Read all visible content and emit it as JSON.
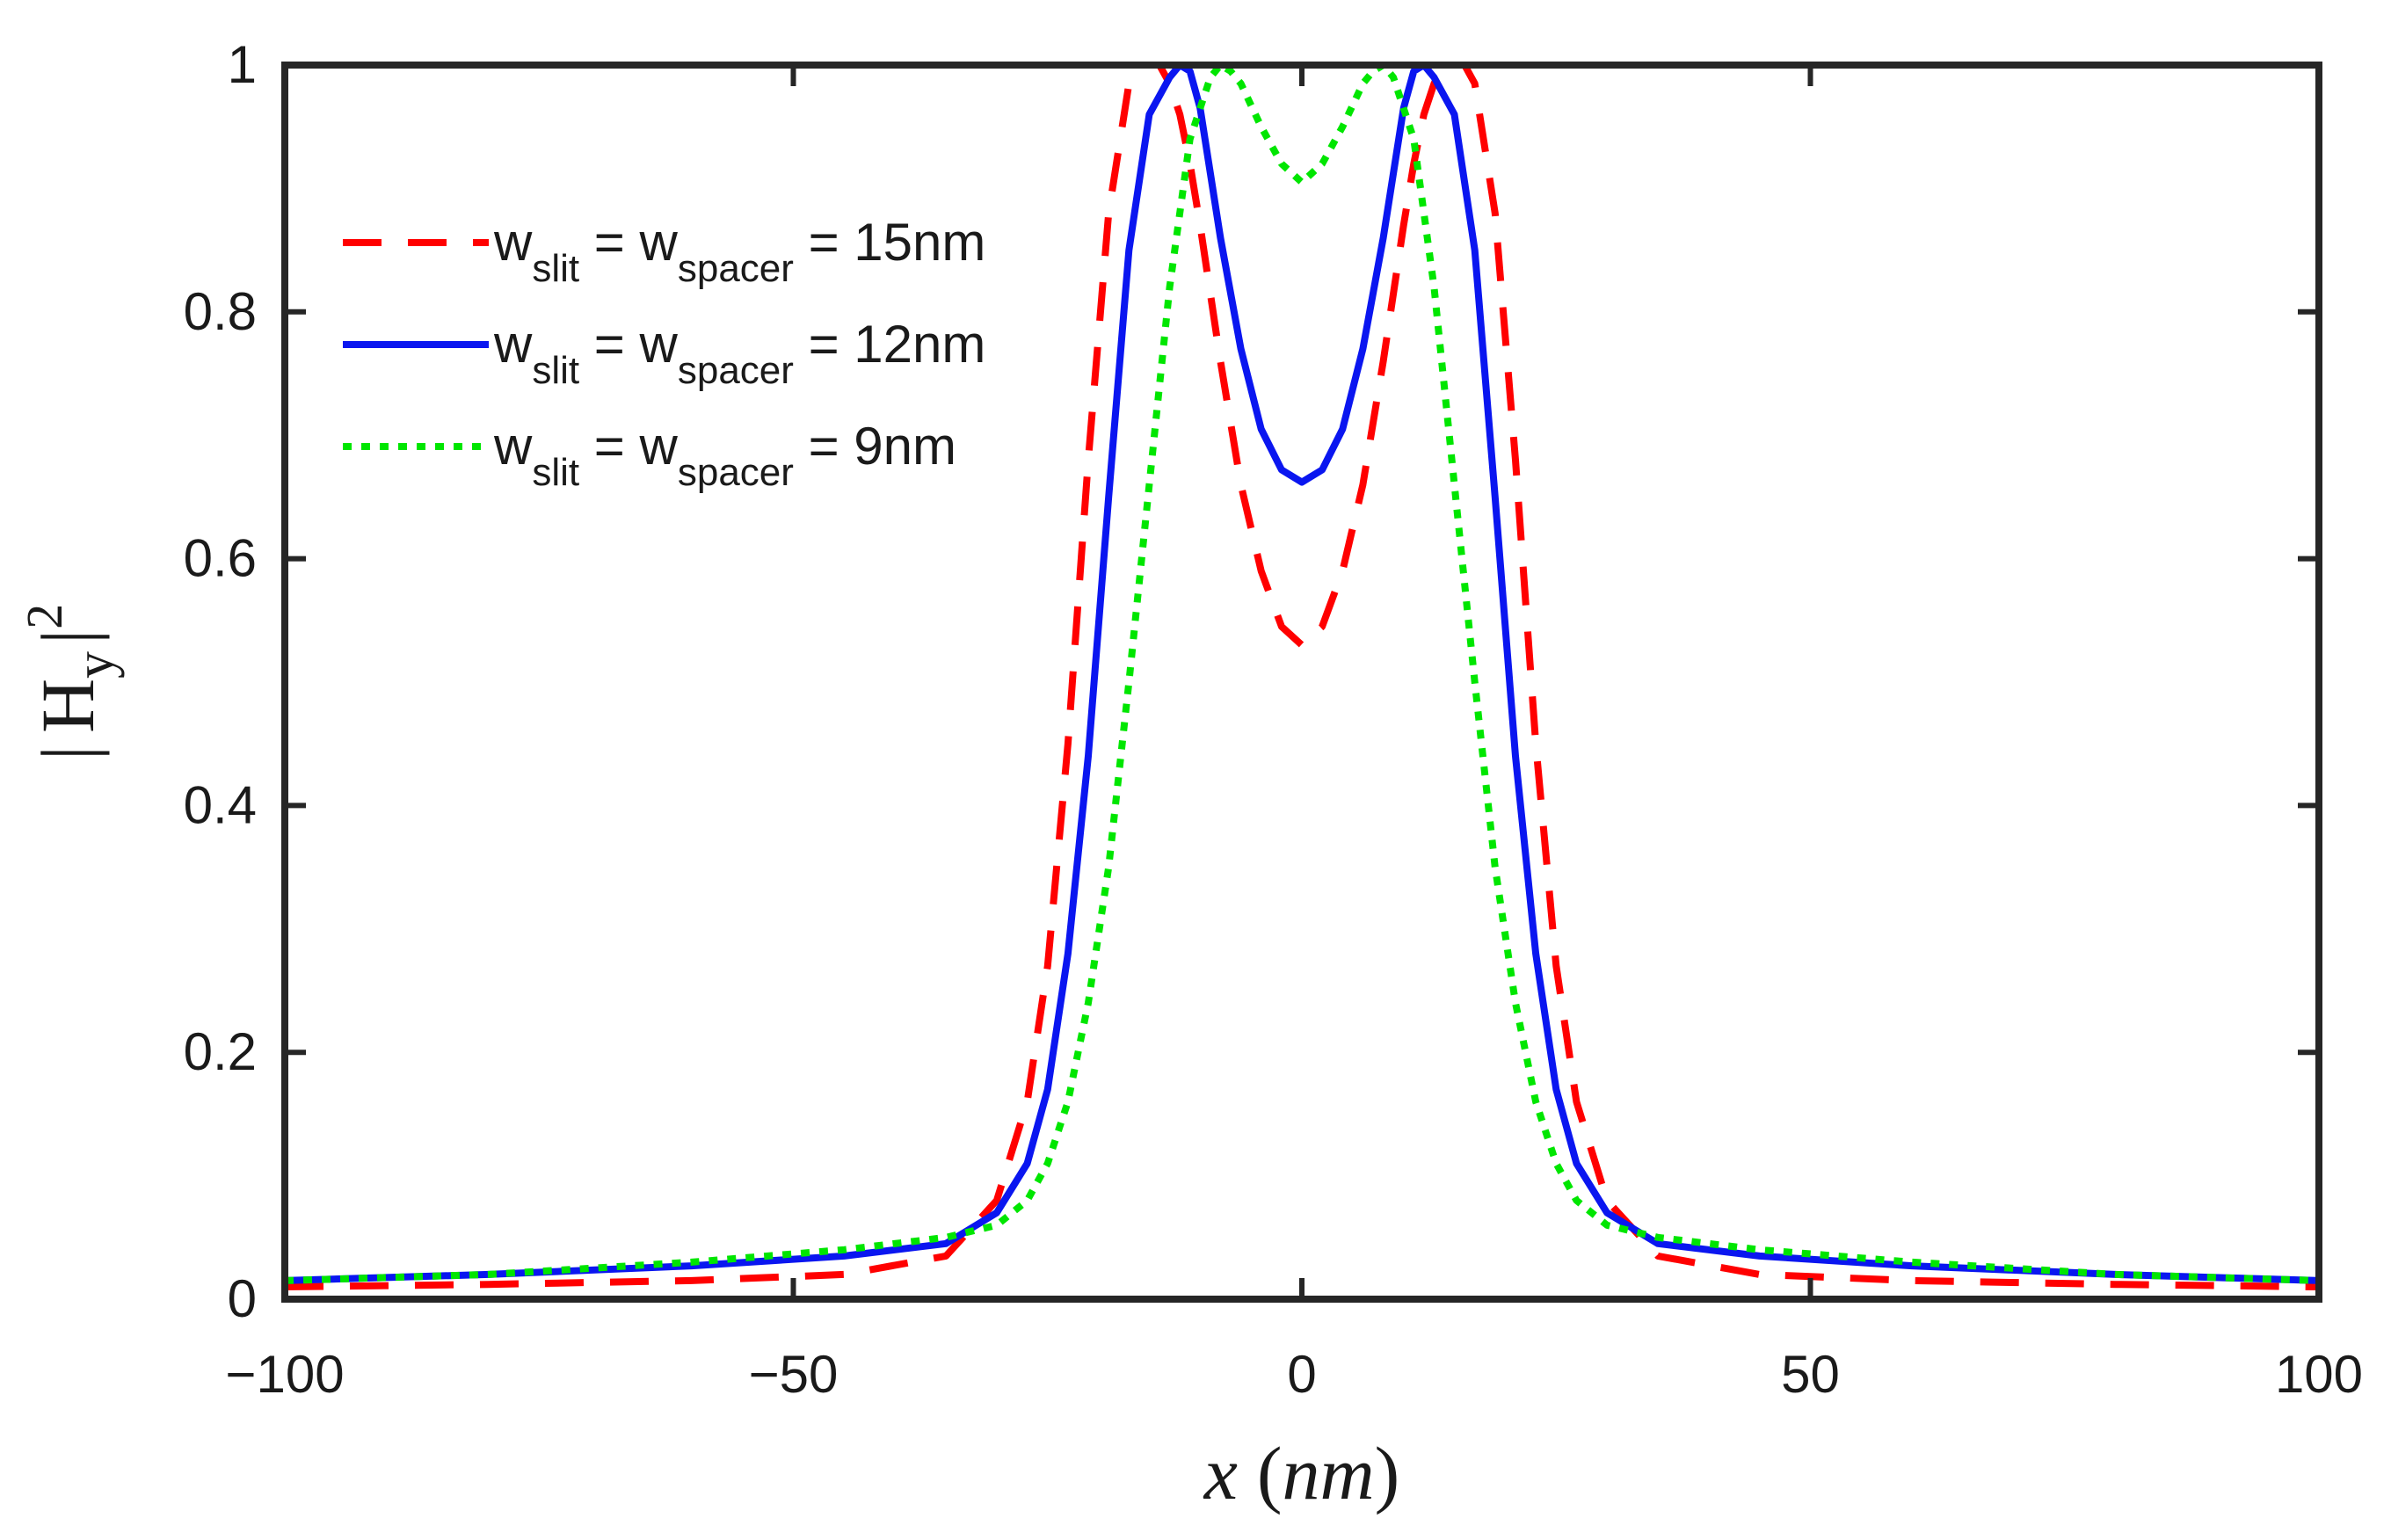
{
  "chart_data": {
    "type": "line",
    "title": "",
    "xlabel": {
      "var": "x",
      "open": "(",
      "unit": "nm",
      "close": ")"
    },
    "ylabel": {
      "bar_left": "|",
      "base": "H",
      "sub": "y",
      "bar_right": "|",
      "sup": "2"
    },
    "xlim": [
      -100,
      100
    ],
    "ylim": [
      0,
      1
    ],
    "x_ticks": [
      -100,
      -50,
      0,
      50,
      100
    ],
    "x_tick_labels": [
      "−100",
      "−50",
      "0",
      "50",
      "100"
    ],
    "y_ticks": [
      0,
      0.2,
      0.4,
      0.6,
      0.8,
      1
    ],
    "y_tick_labels": [
      "0",
      "0.2",
      "0.4",
      "0.6",
      "0.8",
      "1"
    ],
    "grid": false,
    "legend_position": "top-left",
    "series": [
      {
        "name": "w_slit = w_spacer = 15nm",
        "legend": {
          "a": "w",
          "a_sub": "slit",
          "eq1": " = w",
          "b_sub": "spacer",
          "eq2": " = 15nm"
        },
        "color": "#ff0000",
        "style": "dashed",
        "x": [
          -100,
          -80,
          -60,
          -45,
          -35,
          -30,
          -27,
          -25,
          -23,
          -21,
          -19,
          -17,
          -16,
          -15,
          -14,
          -13,
          -12,
          -11,
          -10,
          -8,
          -6,
          -4,
          -2,
          0,
          2,
          4,
          6,
          8,
          10,
          11,
          12,
          13,
          14,
          15,
          16,
          17,
          19,
          21,
          23,
          25,
          27,
          30,
          35,
          45,
          60,
          80,
          100
        ],
        "y": [
          0.01,
          0.012,
          0.015,
          0.02,
          0.035,
          0.08,
          0.16,
          0.27,
          0.45,
          0.68,
          0.88,
          0.985,
          1.0,
          1.0,
          1.0,
          0.985,
          0.96,
          0.92,
          0.87,
          0.76,
          0.66,
          0.59,
          0.545,
          0.53,
          0.545,
          0.59,
          0.66,
          0.76,
          0.87,
          0.92,
          0.96,
          0.985,
          1.0,
          1.0,
          1.0,
          0.985,
          0.88,
          0.68,
          0.45,
          0.27,
          0.16,
          0.08,
          0.035,
          0.02,
          0.015,
          0.012,
          0.01
        ]
      },
      {
        "name": "w_slit = w_spacer = 12nm",
        "legend": {
          "a": "w",
          "a_sub": "slit",
          "eq1": " = w",
          "b_sub": "spacer",
          "eq2": " = 12nm"
        },
        "color": "#0a16f0",
        "style": "solid",
        "x": [
          -100,
          -80,
          -60,
          -45,
          -35,
          -30,
          -27,
          -25,
          -23,
          -21,
          -19,
          -17,
          -15,
          -13,
          -12,
          -11,
          -10,
          -8,
          -6,
          -4,
          -2,
          0,
          2,
          4,
          6,
          8,
          10,
          11,
          12,
          13,
          15,
          17,
          19,
          21,
          23,
          25,
          27,
          30,
          35,
          45,
          60,
          80,
          100
        ],
        "y": [
          0.015,
          0.02,
          0.027,
          0.035,
          0.045,
          0.07,
          0.11,
          0.17,
          0.28,
          0.44,
          0.65,
          0.85,
          0.96,
          0.99,
          1.0,
          0.995,
          0.965,
          0.86,
          0.77,
          0.705,
          0.672,
          0.662,
          0.672,
          0.705,
          0.77,
          0.86,
          0.965,
          0.995,
          1.0,
          0.99,
          0.96,
          0.85,
          0.65,
          0.44,
          0.28,
          0.17,
          0.11,
          0.07,
          0.045,
          0.035,
          0.027,
          0.02,
          0.015
        ]
      },
      {
        "name": "w_slit = w_spacer = 9nm",
        "legend": {
          "a": "w",
          "a_sub": "slit",
          "eq1": " = w",
          "b_sub": "spacer",
          "eq2": " = 9nm"
        },
        "color": "#00e600",
        "style": "dotted",
        "x": [
          -100,
          -80,
          -60,
          -45,
          -35,
          -30,
          -27,
          -25,
          -23,
          -21,
          -19,
          -17,
          -15,
          -13,
          -11,
          -9,
          -8,
          -7,
          -6,
          -4,
          -2,
          0,
          2,
          4,
          6,
          7,
          8,
          9,
          11,
          13,
          15,
          17,
          19,
          21,
          23,
          25,
          27,
          30,
          35,
          45,
          60,
          80,
          100
        ],
        "y": [
          0.015,
          0.02,
          0.03,
          0.04,
          0.05,
          0.06,
          0.08,
          0.11,
          0.16,
          0.24,
          0.35,
          0.5,
          0.66,
          0.82,
          0.94,
          0.99,
          1.0,
          0.995,
          0.985,
          0.95,
          0.92,
          0.905,
          0.92,
          0.95,
          0.985,
          0.995,
          1.0,
          0.99,
          0.94,
          0.82,
          0.66,
          0.5,
          0.35,
          0.24,
          0.16,
          0.11,
          0.08,
          0.06,
          0.05,
          0.04,
          0.03,
          0.02,
          0.015
        ]
      }
    ]
  }
}
